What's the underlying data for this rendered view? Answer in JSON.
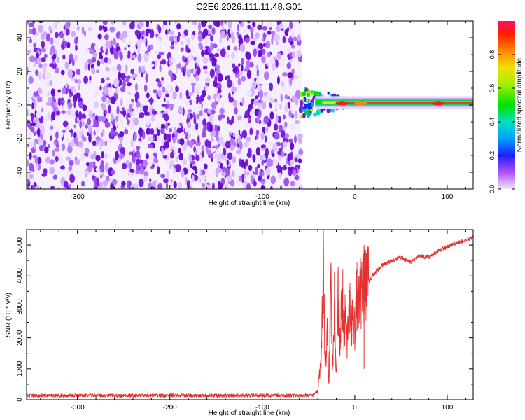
{
  "figure_title": "C2E6.2026.111.11.48.G01",
  "colors": {
    "snr_line": "#e53030",
    "spectral_purple": "#7a1fe0",
    "axes": "#000000"
  },
  "chart_data": [
    {
      "id": "spectrogram",
      "type": "heatmap",
      "title": "",
      "xlabel": "Height of straight line (km)",
      "ylabel": "Frequency (Hz)",
      "xlim": [
        -355,
        128
      ],
      "ylim": [
        -50,
        50
      ],
      "x_ticks": [
        -300,
        -200,
        -100,
        0,
        100
      ],
      "x_tick_labels": [
        "-300",
        "-200",
        "-100",
        "0",
        "100"
      ],
      "y_ticks": [
        -40,
        -20,
        0,
        20,
        40
      ],
      "y_tick_labels": [
        "-40",
        "-20",
        "0",
        "20",
        "40"
      ],
      "noise_region_x": [
        -355,
        -58
      ],
      "transition_region_x": [
        -58,
        -20
      ],
      "signal_line_frequency_hz": 1.5,
      "signal_region_x": [
        -20,
        128
      ],
      "colorbar": {
        "label": "Normalized spectral amplitude",
        "range": [
          0,
          1
        ],
        "ticks": [
          0,
          0.2,
          0.4,
          0.6,
          0.8
        ],
        "tick_labels": [
          "0.0",
          "0.2",
          "0.4",
          "0.6",
          "0.8"
        ]
      }
    },
    {
      "id": "snr",
      "type": "line",
      "title": "",
      "xlabel": "Height of straight line (km)",
      "ylabel": "SNR (10 * v/v)",
      "xlim": [
        -355,
        128
      ],
      "ylim": [
        0,
        5500
      ],
      "x_ticks": [
        -300,
        -200,
        -100,
        0,
        100
      ],
      "x_tick_labels": [
        "-300",
        "-200",
        "-100",
        "0",
        "100"
      ],
      "y_ticks": [
        0,
        1000,
        2000,
        3000,
        4000,
        5000
      ],
      "y_tick_labels": [
        "0",
        "1000",
        "2000",
        "3000",
        "4000",
        "5000"
      ],
      "series": [
        {
          "name": "SNR",
          "x": [
            -355,
            -300,
            -250,
            -200,
            -150,
            -100,
            -60,
            -45,
            -40,
            -36,
            -34,
            -32,
            -30,
            -28,
            -26,
            -24,
            -22,
            -20,
            -18,
            -16,
            -14,
            -12,
            -10,
            -8,
            -6,
            -4,
            -2,
            0,
            2,
            4,
            6,
            8,
            10,
            12,
            14,
            16,
            18,
            20,
            25,
            30,
            40,
            50,
            60,
            70,
            80,
            90,
            100,
            110,
            120,
            128
          ],
          "values": [
            130,
            140,
            130,
            140,
            130,
            140,
            135,
            145,
            300,
            1500,
            4600,
            900,
            2200,
            600,
            3800,
            1100,
            2600,
            700,
            3400,
            1600,
            3200,
            2100,
            2900,
            1800,
            3100,
            2300,
            2700,
            2300,
            3600,
            3000,
            3500,
            3300,
            3700,
            3600,
            3800,
            3850,
            3950,
            4050,
            4200,
            4350,
            4500,
            4600,
            4450,
            4650,
            4600,
            4800,
            4950,
            5050,
            5150,
            5250
          ],
          "spikes": [
            {
              "x": -22,
              "value": 4150
            },
            {
              "x": -13,
              "value": 4200
            },
            {
              "x": 2,
              "value": 4200
            },
            {
              "x": 10,
              "value": 5000
            },
            {
              "x": 10,
              "value": 1000
            },
            {
              "x": -4,
              "value": 1800
            }
          ],
          "noise_amplitude": 60
        }
      ]
    }
  ]
}
